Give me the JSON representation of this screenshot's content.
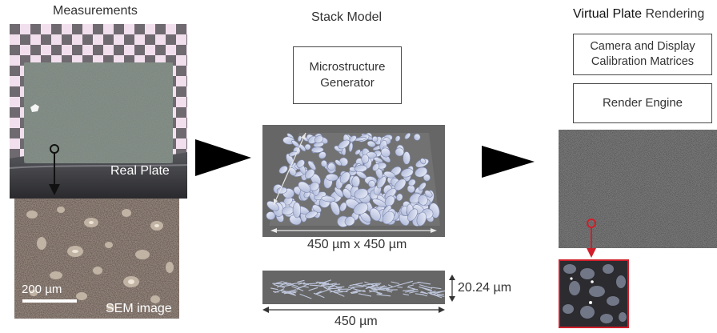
{
  "measurements": {
    "title": "Measurements",
    "real_plate_label": "Real Plate",
    "sem_label": "SEM image",
    "scale_bar_label": "200 µm"
  },
  "stack_model": {
    "title": "Stack Model",
    "generator_line1": "Microstructure",
    "generator_line2": "Generator",
    "top_view_caption": "450 µm x 450 µm",
    "side_view_width_caption": "450 µm",
    "side_view_height_caption": "20.24 µm"
  },
  "rendering": {
    "title_part1": "Virtual Plate",
    "title_part2": "Rendering",
    "calibration_line1": "Camera and Display",
    "calibration_line2": "Calibration Matrices",
    "render_engine": "Render Engine"
  },
  "colors": {
    "text": "#333333",
    "arrow": "#000000",
    "zoom_marker": "#d01f2a",
    "flake_fill": "#c9d2ea",
    "panel_gray": "#666666"
  },
  "icons": {
    "flow_arrow": "triangle-right",
    "zoom_marker": "circle-with-down-arrow"
  }
}
